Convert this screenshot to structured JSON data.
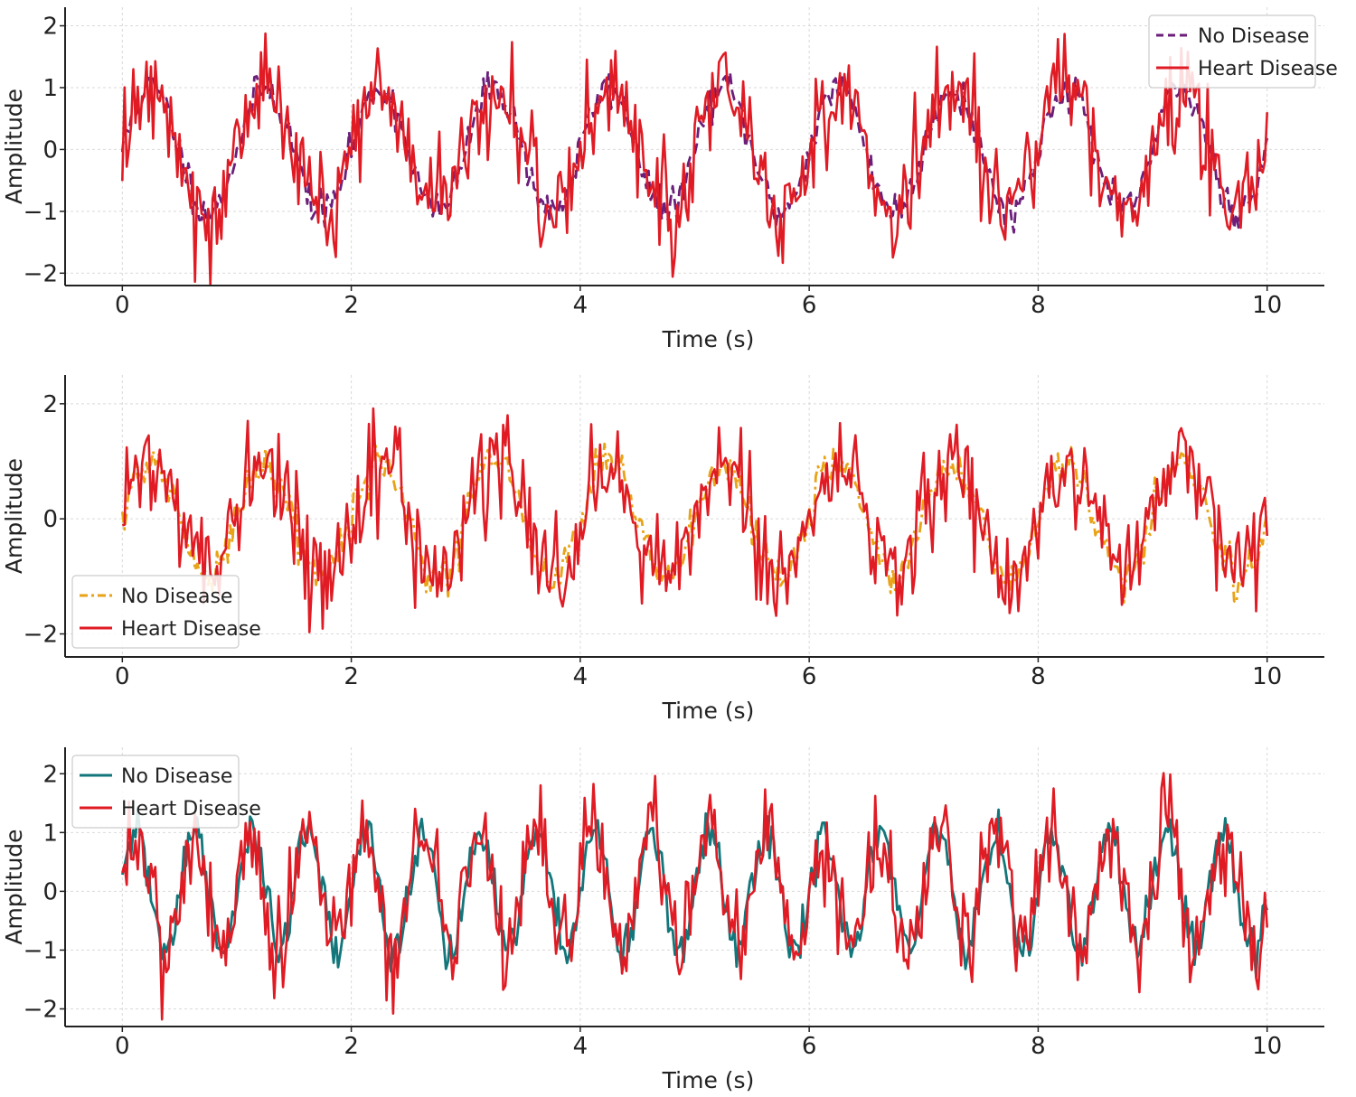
{
  "chart_data": [
    {
      "type": "line",
      "xlabel": "Time (s)",
      "ylabel": "Amplitude",
      "xlim": [
        -0.5,
        10.5
      ],
      "ylim": [
        -2.2,
        2.3
      ],
      "xticks": [
        0,
        2,
        4,
        6,
        8,
        10
      ],
      "xtick_labels": [
        "0",
        "2",
        "4",
        "6",
        "8",
        "10"
      ],
      "yticks": [
        -2,
        -1,
        0,
        1,
        2
      ],
      "ytick_labels": [
        "−2",
        "−1",
        "0",
        "1",
        "2"
      ],
      "grid": true,
      "legend_position": "top-right",
      "series": [
        {
          "name": "No Disease",
          "color": "#6b1f7a",
          "style": "dashed",
          "frequency_hz": 1.0,
          "amplitude": 1.0,
          "noise": 0.15,
          "seed": 11
        },
        {
          "name": "Heart Disease",
          "color": "#e01b24",
          "style": "solid",
          "frequency_hz": 1.0,
          "amplitude": 1.0,
          "noise": 0.45,
          "seed": 12
        }
      ]
    },
    {
      "type": "line",
      "xlabel": "Time (s)",
      "ylabel": "Amplitude",
      "xlim": [
        -0.5,
        10.5
      ],
      "ylim": [
        -2.4,
        2.5
      ],
      "xticks": [
        0,
        2,
        4,
        6,
        8,
        10
      ],
      "xtick_labels": [
        "0",
        "2",
        "4",
        "6",
        "8",
        "10"
      ],
      "yticks": [
        -2,
        0,
        2
      ],
      "ytick_labels": [
        "−2",
        "0",
        "2"
      ],
      "grid": true,
      "legend_position": "bottom-left",
      "series": [
        {
          "name": "No Disease",
          "color": "#e8a317",
          "style": "dashdot",
          "frequency_hz": 1.0,
          "amplitude": 1.0,
          "noise": 0.18,
          "seed": 21
        },
        {
          "name": "Heart Disease",
          "color": "#e01b24",
          "style": "solid",
          "frequency_hz": 1.0,
          "amplitude": 1.0,
          "noise": 0.45,
          "seed": 22
        }
      ]
    },
    {
      "type": "line",
      "xlabel": "Time (s)",
      "ylabel": "Amplitude",
      "xlim": [
        -0.5,
        10.5
      ],
      "ylim": [
        -2.3,
        2.45
      ],
      "xticks": [
        0,
        2,
        4,
        6,
        8,
        10
      ],
      "xtick_labels": [
        "0",
        "2",
        "4",
        "6",
        "8",
        "10"
      ],
      "yticks": [
        -2,
        -1,
        0,
        1,
        2
      ],
      "ytick_labels": [
        "−2",
        "−1",
        "0",
        "1",
        "2"
      ],
      "grid": true,
      "legend_position": "top-left",
      "series": [
        {
          "name": "No Disease",
          "color": "#12767a",
          "style": "solid",
          "frequency_hz": 2.0,
          "amplitude": 1.0,
          "noise": 0.2,
          "seed": 31
        },
        {
          "name": "Heart Disease",
          "color": "#e01b24",
          "style": "solid",
          "frequency_hz": 2.0,
          "amplitude": 1.0,
          "noise": 0.45,
          "seed": 32
        }
      ]
    }
  ]
}
